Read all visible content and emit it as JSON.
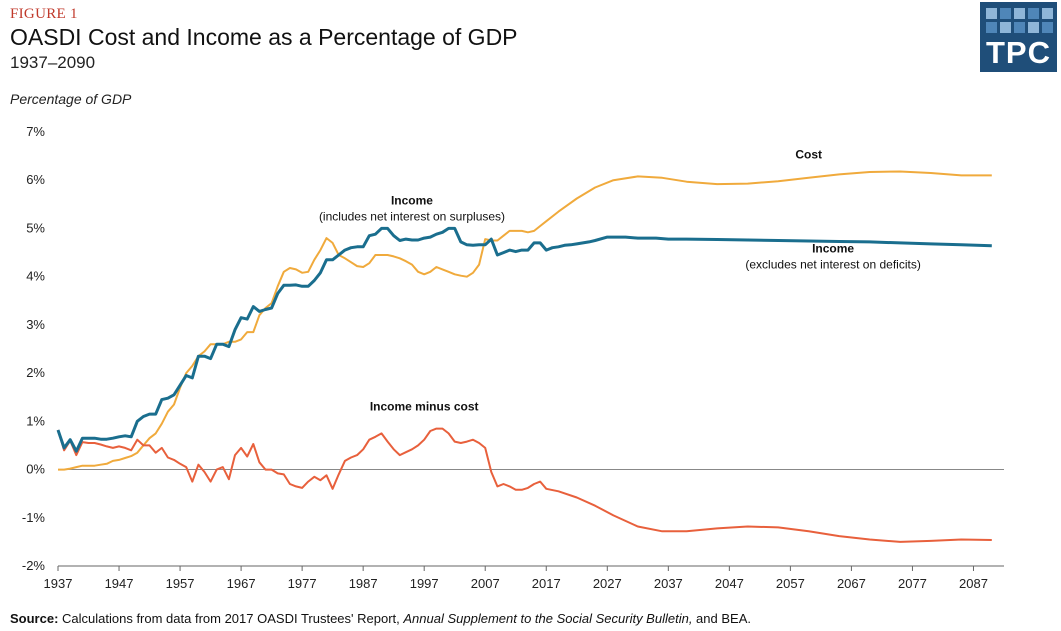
{
  "figure_label": "FIGURE 1",
  "title": "OASDI Cost and Income as a Percentage of GDP",
  "subtitle": "1937–2090",
  "logo_text": "TPC",
  "source": {
    "lead": "Source:",
    "part1": " Calculations from data from 2017 OASDI Trustees' Report, ",
    "italic": "Annual Supplement  to the Social Security Bulletin,",
    "part2": " and BEA."
  },
  "colors": {
    "income": "#1a6e8e",
    "cost": "#f0aa3c",
    "diff": "#e8603c",
    "axis": "#999999"
  },
  "chart_data": {
    "type": "line",
    "ylabel": "Percentage of GDP",
    "xlabel": "",
    "xlim": [
      1937,
      2092
    ],
    "ylim": [
      -2,
      7
    ],
    "y_ticks": [
      "7%",
      "6%",
      "5%",
      "4%",
      "3%",
      "2%",
      "1%",
      "0%",
      "-1%",
      "-2%"
    ],
    "y_tick_values": [
      7,
      6,
      5,
      4,
      3,
      2,
      1,
      0,
      -1,
      -2
    ],
    "x_ticks": [
      "1937",
      "1947",
      "1957",
      "1967",
      "1977",
      "1987",
      "1997",
      "2007",
      "2017",
      "2027",
      "2037",
      "2047",
      "2057",
      "2067",
      "2077",
      "2087"
    ],
    "x_tick_values": [
      1937,
      1947,
      1957,
      1967,
      1977,
      1987,
      1997,
      2007,
      2017,
      2027,
      2037,
      2047,
      2057,
      2067,
      2077,
      2087
    ],
    "grid": false,
    "zero_line": true,
    "annotations": [
      {
        "id": "cost",
        "lines": [
          "Cost"
        ],
        "x": 2060,
        "y": 6.45
      },
      {
        "id": "income-hist",
        "lines": [
          "Income",
          "(includes net interest on surpluses)"
        ],
        "x": 1995,
        "y": 5.5
      },
      {
        "id": "income-proj",
        "lines": [
          "Income",
          "(excludes net interest on deficits)"
        ],
        "x": 2064,
        "y": 4.5
      },
      {
        "id": "diff",
        "lines": [
          "Income  minus  cost"
        ],
        "x": 1997,
        "y": 1.22
      }
    ],
    "series": [
      {
        "key": "income",
        "x": [
          1937,
          1938,
          1939,
          1940,
          1941,
          1942,
          1943,
          1944,
          1945,
          1946,
          1947,
          1948,
          1949,
          1950,
          1951,
          1952,
          1953,
          1954,
          1955,
          1956,
          1957,
          1958,
          1959,
          1960,
          1961,
          1962,
          1963,
          1964,
          1965,
          1966,
          1967,
          1968,
          1969,
          1970,
          1971,
          1972,
          1973,
          1974,
          1975,
          1976,
          1977,
          1978,
          1979,
          1980,
          1981,
          1982,
          1983,
          1984,
          1985,
          1986,
          1987,
          1988,
          1989,
          1990,
          1991,
          1992,
          1993,
          1994,
          1995,
          1996,
          1997,
          1998,
          1999,
          2000,
          2001,
          2002,
          2003,
          2004,
          2005,
          2006,
          2007,
          2008,
          2009,
          2010,
          2011,
          2012,
          2013,
          2014,
          2015,
          2016,
          2017,
          2018,
          2019,
          2020,
          2021,
          2022,
          2023,
          2024,
          2025,
          2027,
          2030,
          2032,
          2035,
          2037,
          2040,
          2045,
          2050,
          2055,
          2060,
          2065,
          2070,
          2075,
          2080,
          2085,
          2090
        ],
        "values": [
          0.82,
          0.45,
          0.62,
          0.38,
          0.65,
          0.65,
          0.65,
          0.63,
          0.63,
          0.65,
          0.68,
          0.7,
          0.68,
          1.0,
          1.1,
          1.15,
          1.15,
          1.45,
          1.48,
          1.55,
          1.75,
          1.95,
          1.9,
          2.35,
          2.35,
          2.3,
          2.6,
          2.6,
          2.55,
          2.9,
          3.15,
          3.12,
          3.38,
          3.28,
          3.32,
          3.35,
          3.65,
          3.82,
          3.82,
          3.83,
          3.8,
          3.8,
          3.92,
          4.08,
          4.35,
          4.35,
          4.45,
          4.55,
          4.6,
          4.62,
          4.62,
          4.85,
          4.88,
          5.0,
          5.0,
          4.85,
          4.75,
          4.78,
          4.76,
          4.76,
          4.8,
          4.82,
          4.88,
          4.92,
          5.0,
          5.0,
          4.72,
          4.66,
          4.65,
          4.66,
          4.66,
          4.78,
          4.45,
          4.5,
          4.55,
          4.52,
          4.55,
          4.55,
          4.7,
          4.7,
          4.55,
          4.6,
          4.62,
          4.65,
          4.66,
          4.68,
          4.7,
          4.72,
          4.75,
          4.82,
          4.82,
          4.8,
          4.8,
          4.78,
          4.78,
          4.77,
          4.76,
          4.75,
          4.74,
          4.73,
          4.72,
          4.7,
          4.68,
          4.66,
          4.64
        ]
      },
      {
        "key": "cost",
        "x": [
          1937,
          1938,
          1939,
          1940,
          1941,
          1942,
          1943,
          1944,
          1945,
          1946,
          1947,
          1948,
          1949,
          1950,
          1951,
          1952,
          1953,
          1954,
          1955,
          1956,
          1957,
          1958,
          1959,
          1960,
          1961,
          1962,
          1963,
          1964,
          1965,
          1966,
          1967,
          1968,
          1969,
          1970,
          1971,
          1972,
          1973,
          1974,
          1975,
          1976,
          1977,
          1978,
          1979,
          1980,
          1981,
          1982,
          1983,
          1984,
          1985,
          1986,
          1987,
          1988,
          1989,
          1990,
          1991,
          1992,
          1993,
          1994,
          1995,
          1996,
          1997,
          1998,
          1999,
          2000,
          2001,
          2002,
          2003,
          2004,
          2005,
          2006,
          2007,
          2008,
          2009,
          2010,
          2011,
          2012,
          2013,
          2014,
          2015,
          2016,
          2017,
          2019,
          2022,
          2025,
          2028,
          2032,
          2036,
          2040,
          2045,
          2050,
          2055,
          2060,
          2065,
          2070,
          2075,
          2080,
          2085,
          2090
        ],
        "values": [
          0.0,
          0.0,
          0.02,
          0.05,
          0.08,
          0.08,
          0.08,
          0.1,
          0.12,
          0.18,
          0.2,
          0.24,
          0.28,
          0.35,
          0.5,
          0.65,
          0.75,
          0.95,
          1.2,
          1.35,
          1.7,
          2.0,
          2.15,
          2.35,
          2.45,
          2.6,
          2.6,
          2.6,
          2.65,
          2.65,
          2.7,
          2.85,
          2.85,
          3.2,
          3.35,
          3.45,
          3.8,
          4.1,
          4.18,
          4.15,
          4.08,
          4.1,
          4.35,
          4.55,
          4.8,
          4.7,
          4.45,
          4.38,
          4.3,
          4.22,
          4.2,
          4.28,
          4.45,
          4.45,
          4.45,
          4.42,
          4.38,
          4.32,
          4.25,
          4.1,
          4.05,
          4.1,
          4.2,
          4.15,
          4.1,
          4.05,
          4.02,
          4.0,
          4.08,
          4.25,
          4.78,
          4.75,
          4.75,
          4.85,
          4.95,
          4.95,
          4.95,
          4.92,
          4.95,
          5.05,
          5.15,
          5.35,
          5.62,
          5.85,
          6.0,
          6.08,
          6.05,
          5.97,
          5.92,
          5.93,
          5.98,
          6.05,
          6.12,
          6.17,
          6.18,
          6.15,
          6.1,
          6.1
        ]
      },
      {
        "key": "diff",
        "x": [
          1937,
          1938,
          1939,
          1940,
          1941,
          1942,
          1943,
          1944,
          1945,
          1946,
          1947,
          1948,
          1949,
          1950,
          1951,
          1952,
          1953,
          1954,
          1955,
          1956,
          1957,
          1958,
          1959,
          1960,
          1961,
          1962,
          1963,
          1964,
          1965,
          1966,
          1967,
          1968,
          1969,
          1970,
          1971,
          1972,
          1973,
          1974,
          1975,
          1976,
          1977,
          1978,
          1979,
          1980,
          1981,
          1982,
          1983,
          1984,
          1985,
          1986,
          1987,
          1988,
          1989,
          1990,
          1991,
          1992,
          1993,
          1994,
          1995,
          1996,
          1997,
          1998,
          1999,
          2000,
          2001,
          2002,
          2003,
          2004,
          2005,
          2006,
          2007,
          2008,
          2009,
          2010,
          2011,
          2012,
          2013,
          2014,
          2015,
          2016,
          2017,
          2019,
          2022,
          2025,
          2028,
          2032,
          2036,
          2040,
          2045,
          2050,
          2055,
          2060,
          2065,
          2070,
          2075,
          2080,
          2085,
          2090
        ],
        "values": [
          0.82,
          0.4,
          0.6,
          0.3,
          0.57,
          0.55,
          0.55,
          0.52,
          0.48,
          0.45,
          0.48,
          0.45,
          0.4,
          0.62,
          0.5,
          0.5,
          0.35,
          0.45,
          0.25,
          0.2,
          0.12,
          0.05,
          -0.25,
          0.1,
          -0.05,
          -0.25,
          0.0,
          0.05,
          -0.2,
          0.3,
          0.45,
          0.27,
          0.53,
          0.15,
          0.0,
          0.0,
          -0.08,
          -0.1,
          -0.3,
          -0.35,
          -0.38,
          -0.25,
          -0.15,
          -0.22,
          -0.12,
          -0.4,
          -0.1,
          0.18,
          0.25,
          0.3,
          0.42,
          0.62,
          0.68,
          0.75,
          0.58,
          0.42,
          0.3,
          0.36,
          0.42,
          0.5,
          0.62,
          0.8,
          0.85,
          0.85,
          0.75,
          0.58,
          0.55,
          0.58,
          0.62,
          0.55,
          0.45,
          -0.05,
          -0.35,
          -0.3,
          -0.35,
          -0.42,
          -0.42,
          -0.38,
          -0.3,
          -0.25,
          -0.4,
          -0.45,
          -0.58,
          -0.75,
          -0.95,
          -1.18,
          -1.28,
          -1.28,
          -1.22,
          -1.18,
          -1.2,
          -1.28,
          -1.38,
          -1.45,
          -1.5,
          -1.48,
          -1.45,
          -1.46
        ]
      }
    ]
  }
}
